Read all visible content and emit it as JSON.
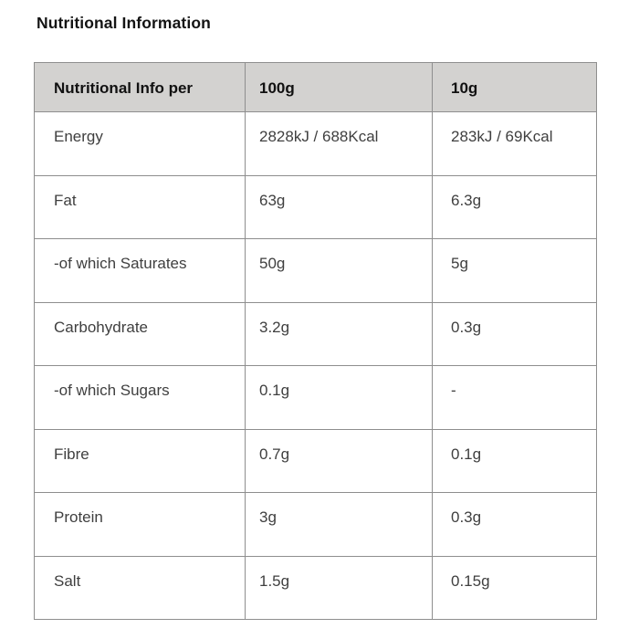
{
  "page": {
    "title": "Nutritional Information"
  },
  "theme": {
    "header_bg": "#d3d2d0",
    "border": "#8e8e8e",
    "header_text": "#111111",
    "cell_text": "#3f3f3f",
    "title_text": "#141414"
  },
  "table": {
    "headers": [
      "Nutritional Info per",
      "100g",
      "10g"
    ],
    "rows": [
      {
        "label": "Energy",
        "per_100g": "2828kJ / 688Kcal",
        "per_10g": "283kJ / 69Kcal"
      },
      {
        "label": "Fat",
        "per_100g": "63g",
        "per_10g": "6.3g"
      },
      {
        "label": "-of which Saturates",
        "per_100g": "50g",
        "per_10g": "5g"
      },
      {
        "label": "Carbohydrate",
        "per_100g": "3.2g",
        "per_10g": "0.3g"
      },
      {
        "label": "-of which Sugars",
        "per_100g": "0.1g",
        "per_10g": "-"
      },
      {
        "label": "Fibre",
        "per_100g": "0.7g",
        "per_10g": "0.1g"
      },
      {
        "label": "Protein",
        "per_100g": "3g",
        "per_10g": "0.3g"
      },
      {
        "label": "Salt",
        "per_100g": "1.5g",
        "per_10g": "0.15g"
      }
    ]
  }
}
